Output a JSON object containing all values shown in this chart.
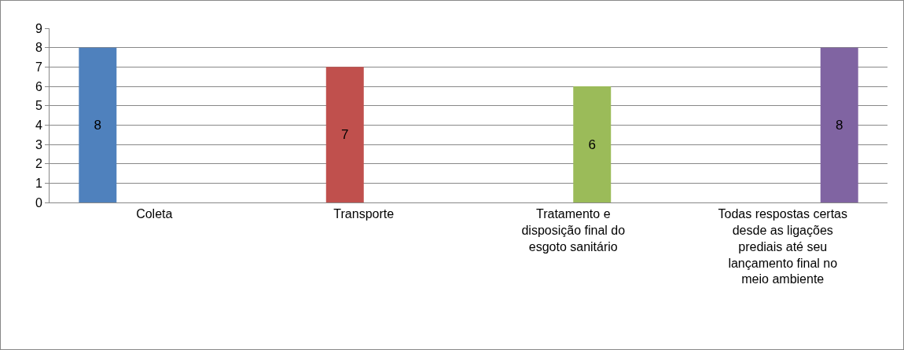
{
  "chart_data": {
    "type": "bar",
    "categories": [
      "Coleta",
      "Transporte",
      "Tratamento  e disposição final do esgoto sanitário",
      "Todas respostas certas desde as ligações prediais até seu lançamento final no meio ambiente"
    ],
    "series": [
      {
        "color": "#4f81bd",
        "values": [
          8,
          null,
          null,
          null
        ]
      },
      {
        "color": "#c0504d",
        "values": [
          null,
          7,
          null,
          null
        ]
      },
      {
        "color": "#9bbb59",
        "values": [
          null,
          null,
          6,
          null
        ]
      },
      {
        "color": "#8064a2",
        "values": [
          null,
          null,
          null,
          8
        ]
      }
    ],
    "ylim": [
      0,
      9
    ],
    "yticks": [
      0,
      1,
      2,
      3,
      4,
      5,
      6,
      7,
      8,
      9
    ],
    "grid": "y",
    "data_labels": true
  }
}
